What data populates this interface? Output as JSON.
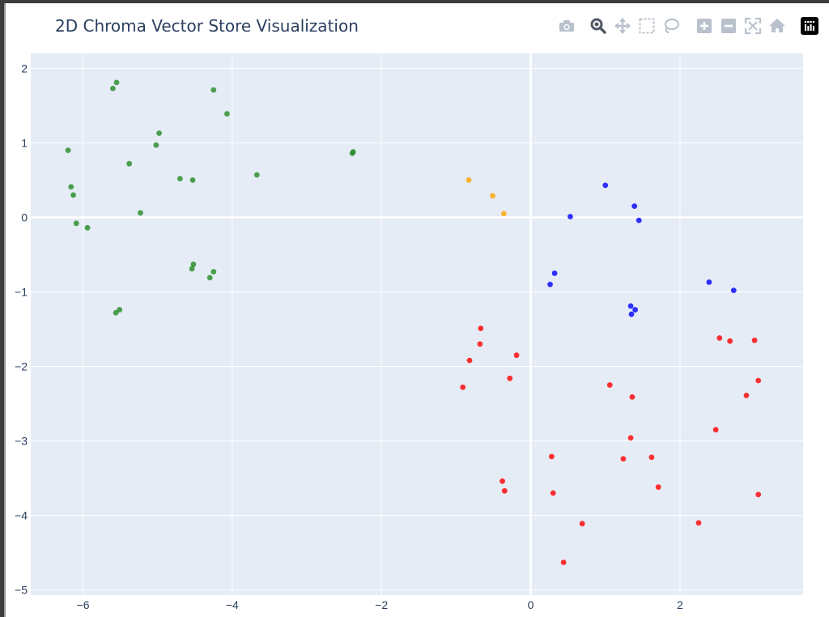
{
  "chart_data": {
    "type": "scatter",
    "title": "2D Chroma Vector Store Visualization",
    "xlabel": "",
    "ylabel": "",
    "xlim": [
      -6.7,
      3.65
    ],
    "ylim": [
      -5.07,
      2.2
    ],
    "x_ticks": [
      -6,
      -4,
      -2,
      0,
      2
    ],
    "y_ticks": [
      2,
      1,
      0,
      -1,
      -2,
      -3,
      -4,
      -5
    ],
    "x_tick_labels": [
      "−6",
      "−4",
      "−2",
      "0",
      "2"
    ],
    "y_tick_labels": [
      "2",
      "1",
      "0",
      "−1",
      "−2",
      "−3",
      "−4",
      "−5"
    ],
    "grid": true,
    "legend": false,
    "plot_background": "#e5ecf6",
    "series": [
      {
        "color": "#228B22",
        "points": [
          [
            -5.55,
            1.81
          ],
          [
            -5.6,
            1.73
          ],
          [
            -4.25,
            1.71
          ],
          [
            -4.07,
            1.39
          ],
          [
            -4.98,
            1.13
          ],
          [
            -5.02,
            0.97
          ],
          [
            -6.2,
            0.9
          ],
          [
            -2.38,
            0.88
          ],
          [
            -2.39,
            0.86
          ],
          [
            -5.38,
            0.72
          ],
          [
            -3.67,
            0.57
          ],
          [
            -4.7,
            0.52
          ],
          [
            -4.53,
            0.5
          ],
          [
            -6.16,
            0.41
          ],
          [
            -6.13,
            0.3
          ],
          [
            -5.23,
            0.06
          ],
          [
            -6.09,
            -0.08
          ],
          [
            -5.94,
            -0.14
          ],
          [
            -4.52,
            -0.63
          ],
          [
            -4.54,
            -0.69
          ],
          [
            -4.25,
            -0.73
          ],
          [
            -4.3,
            -0.81
          ],
          [
            -5.51,
            -1.24
          ],
          [
            -5.56,
            -1.28
          ]
        ]
      },
      {
        "color": "#FFA500",
        "points": [
          [
            -0.83,
            0.5
          ],
          [
            -0.51,
            0.29
          ],
          [
            -0.36,
            0.05
          ]
        ]
      },
      {
        "color": "#0000FF",
        "points": [
          [
            1.0,
            0.43
          ],
          [
            1.39,
            0.15
          ],
          [
            0.53,
            0.01
          ],
          [
            1.45,
            -0.04
          ],
          [
            0.32,
            -0.75
          ],
          [
            0.26,
            -0.9
          ],
          [
            2.39,
            -0.87
          ],
          [
            2.72,
            -0.98
          ],
          [
            1.34,
            -1.19
          ],
          [
            1.4,
            -1.24
          ],
          [
            1.35,
            -1.3
          ]
        ]
      },
      {
        "color": "#FF0000",
        "points": [
          [
            -0.67,
            -1.49
          ],
          [
            -0.68,
            -1.7
          ],
          [
            -0.19,
            -1.85
          ],
          [
            -0.82,
            -1.92
          ],
          [
            -0.28,
            -2.16
          ],
          [
            -0.91,
            -2.28
          ],
          [
            1.06,
            -2.25
          ],
          [
            1.36,
            -2.41
          ],
          [
            2.53,
            -1.62
          ],
          [
            2.67,
            -1.66
          ],
          [
            3.0,
            -1.65
          ],
          [
            3.05,
            -2.19
          ],
          [
            2.89,
            -2.39
          ],
          [
            2.48,
            -2.85
          ],
          [
            1.34,
            -2.96
          ],
          [
            0.28,
            -3.21
          ],
          [
            1.24,
            -3.24
          ],
          [
            1.62,
            -3.22
          ],
          [
            1.71,
            -3.62
          ],
          [
            -0.38,
            -3.54
          ],
          [
            -0.35,
            -3.67
          ],
          [
            0.3,
            -3.7
          ],
          [
            3.05,
            -3.72
          ],
          [
            0.69,
            -4.11
          ],
          [
            2.25,
            -4.1
          ],
          [
            0.44,
            -4.63
          ]
        ]
      }
    ]
  },
  "toolbar": {
    "buttons": [
      {
        "name": "download-plot-button",
        "label": "Download plot as a png",
        "icon": "camera-icon",
        "active": false
      },
      {
        "name": "zoom-button",
        "label": "Zoom",
        "icon": "magnifier-icon",
        "active": true
      },
      {
        "name": "pan-button",
        "label": "Pan",
        "icon": "pan-arrows-icon",
        "active": false
      },
      {
        "name": "box-select-button",
        "label": "Box Select",
        "icon": "box-select-icon",
        "active": false
      },
      {
        "name": "lasso-select-button",
        "label": "Lasso Select",
        "icon": "lasso-icon",
        "active": false
      },
      {
        "name": "zoom-in-button",
        "label": "Zoom in",
        "icon": "plus-square-icon",
        "active": false
      },
      {
        "name": "zoom-out-button",
        "label": "Zoom out",
        "icon": "minus-square-icon",
        "active": false
      },
      {
        "name": "autoscale-button",
        "label": "Autoscale",
        "icon": "autoscale-icon",
        "active": false
      },
      {
        "name": "reset-axes-button",
        "label": "Reset axes",
        "icon": "home-icon",
        "active": false
      },
      {
        "name": "plotly-logo-button",
        "label": "Produced with Plotly",
        "icon": "plotly-logo-icon",
        "active": false
      }
    ]
  }
}
